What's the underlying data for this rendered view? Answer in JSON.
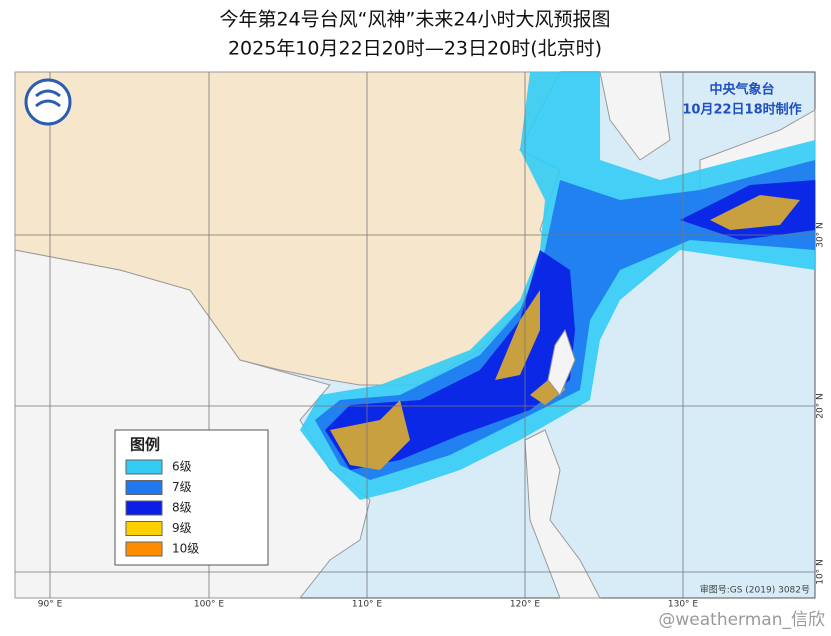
{
  "header": {
    "title": "今年第24号台风“风神”未来24小时大风预报图",
    "subtitle": "2025年10月22日20时—23日20时(北京时)"
  },
  "agency": {
    "name": "中央气象台",
    "issued": "10月22日18时制作"
  },
  "legend": {
    "title": "图例",
    "items": [
      {
        "label": "6级",
        "color": "#33ccf5"
      },
      {
        "label": "7级",
        "color": "#1f78f0"
      },
      {
        "label": "8级",
        "color": "#0a1ee6"
      },
      {
        "label": "9级",
        "color": "#ffd000"
      },
      {
        "label": "10级",
        "color": "#ff8c00"
      }
    ]
  },
  "longitude_labels": [
    "90° E",
    "100° E",
    "110° E",
    "120° E",
    "130° E"
  ],
  "latitude_labels": [
    "30° N",
    "20° N",
    "10° N"
  ],
  "map_number": "审图号:GS (2019) 3082号",
  "watermark": "@weatherman_信欣"
}
